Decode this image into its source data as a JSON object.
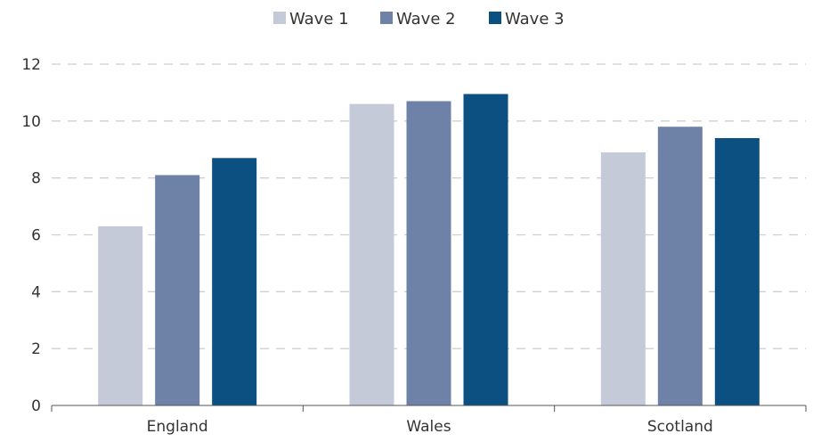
{
  "chart_data": {
    "type": "bar",
    "title": "",
    "xlabel": "",
    "ylabel": "",
    "categories": [
      "England",
      "Wales",
      "Scotland"
    ],
    "series": [
      {
        "name": "Wave 1",
        "color": "#c5cad9",
        "values": [
          6.3,
          10.6,
          8.9
        ]
      },
      {
        "name": "Wave 2",
        "color": "#6e82a8",
        "values": [
          8.1,
          10.7,
          9.8
        ]
      },
      {
        "name": "Wave 3",
        "color": "#0b5080",
        "values": [
          8.7,
          10.95,
          9.4
        ]
      }
    ],
    "ylim": [
      0,
      12
    ],
    "yticks": [
      0,
      2,
      4,
      6,
      8,
      10,
      12
    ],
    "grid": true,
    "legend_position": "top-center"
  }
}
